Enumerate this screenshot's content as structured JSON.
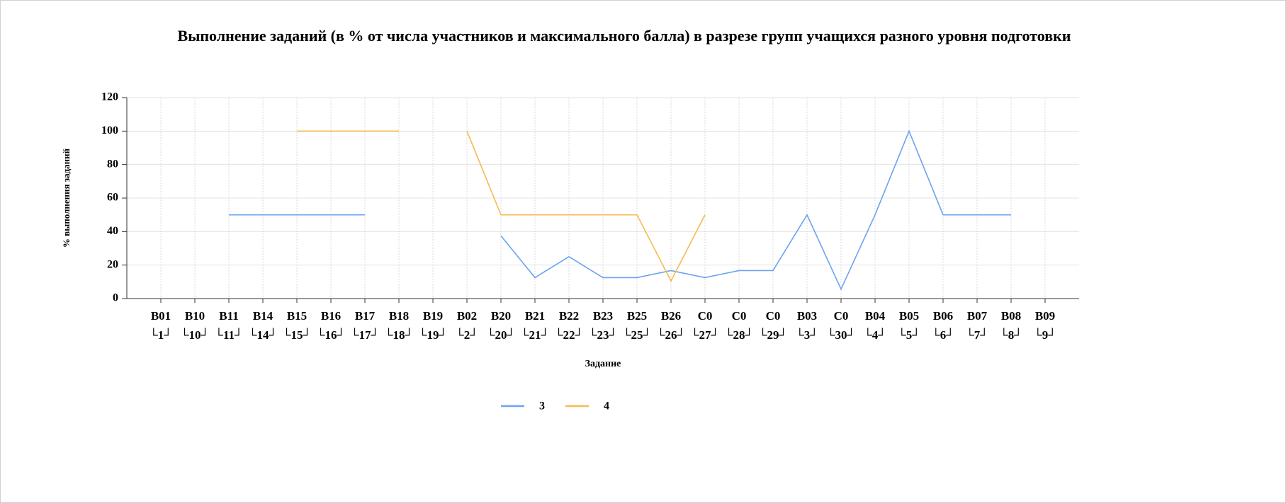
{
  "chart_data": {
    "type": "line",
    "title": "Выполнение заданий (в % от числа участников и максимального балла) в разрезе групп учащихся разного уровня подготовки",
    "x_label": "Задание",
    "y_label": "% выполнения заданий",
    "categories": [
      "В01\n└1┘",
      "В10\n└10┘",
      "В11\n└11┘",
      "В14\n└14┘",
      "В15\n└15┘",
      "В16\n└16┘",
      "В17\n└17┘",
      "В18\n└18┘",
      "В19\n└19┘",
      "В02\n└2┘",
      "В20\n└20┘",
      "В21\n└21┘",
      "В22\n└22┘",
      "В23\n└23┘",
      "В25\n└25┘",
      "В26\n└26┘",
      "С0\n└27┘",
      "С0\n└28┘",
      "С0\n└29┘",
      "В03\n└3┘",
      "С0\n└30┘",
      "В04\n└4┘",
      "В05\n└5┘",
      "В06\n└6┘",
      "В07\n└7┘",
      "В08\n└8┘",
      "В09\n└9┘"
    ],
    "series": [
      {
        "name": "3",
        "color": "#6aa3f0",
        "values": [
          null,
          null,
          50,
          50,
          50,
          50,
          50,
          null,
          null,
          null,
          37.5,
          12.5,
          25,
          12.5,
          12.5,
          16.7,
          12.5,
          16.7,
          16.7,
          50,
          5.6,
          50,
          100,
          50,
          50,
          50,
          null
        ]
      },
      {
        "name": "4",
        "color": "#f5bb50",
        "values": [
          null,
          null,
          null,
          null,
          100,
          100,
          100,
          100,
          null,
          100,
          50,
          50,
          50,
          50,
          50,
          10.5,
          50,
          null,
          null,
          null,
          null,
          null,
          null,
          null,
          null,
          null,
          null
        ]
      }
    ],
    "ylim": [
      0,
      120
    ],
    "yticks": [
      0,
      20,
      40,
      60,
      80,
      100,
      120
    ],
    "grid": true,
    "legend": "bottom"
  }
}
